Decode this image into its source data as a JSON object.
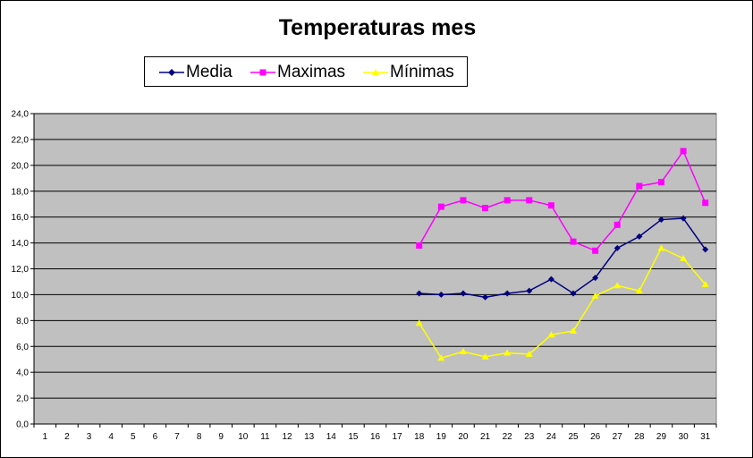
{
  "chart_data": {
    "type": "line",
    "title": "Temperaturas mes",
    "xlabel": "",
    "ylabel": "",
    "categories": [
      "1",
      "2",
      "3",
      "4",
      "5",
      "6",
      "7",
      "8",
      "9",
      "10",
      "11",
      "12",
      "13",
      "14",
      "15",
      "16",
      "17",
      "18",
      "19",
      "20",
      "21",
      "22",
      "23",
      "24",
      "25",
      "26",
      "27",
      "28",
      "29",
      "30",
      "31"
    ],
    "y_ticks": [
      "0,0",
      "2,0",
      "4,0",
      "6,0",
      "8,0",
      "10,0",
      "12,0",
      "14,0",
      "16,0",
      "18,0",
      "20,0",
      "22,0",
      "24,0"
    ],
    "ylim": [
      0,
      24
    ],
    "grid": "horizontal",
    "plot_background": "#C0C0C0",
    "legend_position": "top",
    "series": [
      {
        "name": "Media",
        "color": "#000080",
        "marker": "diamond",
        "values": [
          null,
          null,
          null,
          null,
          null,
          null,
          null,
          null,
          null,
          null,
          null,
          null,
          null,
          null,
          null,
          null,
          null,
          10.1,
          10.0,
          10.1,
          9.8,
          10.1,
          10.3,
          11.2,
          10.1,
          11.3,
          13.6,
          14.5,
          15.8,
          15.9,
          13.5
        ]
      },
      {
        "name": "Maximas",
        "color": "#FF00FF",
        "marker": "square",
        "values": [
          null,
          null,
          null,
          null,
          null,
          null,
          null,
          null,
          null,
          null,
          null,
          null,
          null,
          null,
          null,
          null,
          null,
          13.8,
          16.8,
          17.3,
          16.7,
          17.3,
          17.3,
          16.9,
          14.1,
          13.4,
          15.4,
          18.4,
          18.7,
          21.1,
          17.1
        ]
      },
      {
        "name": "Mínimas",
        "color": "#FFFF00",
        "marker": "triangle",
        "values": [
          null,
          null,
          null,
          null,
          null,
          null,
          null,
          null,
          null,
          null,
          null,
          null,
          null,
          null,
          null,
          null,
          null,
          7.8,
          5.1,
          5.6,
          5.2,
          5.5,
          5.4,
          6.9,
          7.2,
          9.9,
          10.7,
          10.3,
          13.6,
          12.8,
          10.8
        ]
      }
    ]
  }
}
